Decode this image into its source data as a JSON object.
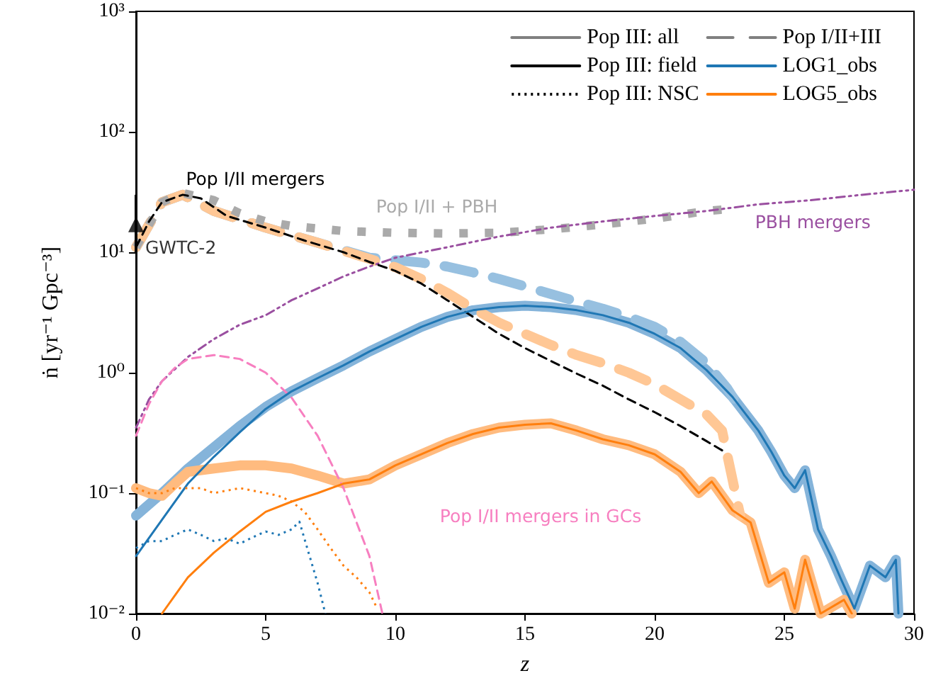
{
  "chart_data": {
    "type": "line",
    "xlabel": "z",
    "ylabel": "ṅ [yr⁻¹ Gpc⁻³]",
    "log": "y",
    "xlim": [
      0,
      30
    ],
    "xticks": [
      0,
      5,
      10,
      15,
      20,
      25,
      30
    ],
    "ylim": [
      0.01,
      1000
    ],
    "yticks": [
      {
        "value": 0.01,
        "label": "10⁻²"
      },
      {
        "value": 0.1,
        "label": "10⁻¹"
      },
      {
        "value": 1,
        "label": "10⁰"
      },
      {
        "value": 10,
        "label": "10¹"
      },
      {
        "value": 100,
        "label": "10²"
      },
      {
        "value": 1000,
        "label": "10³"
      }
    ],
    "grid": false,
    "legend": "top right",
    "marker": "none",
    "series": [
      {
        "name": "Pop III: all",
        "color": "#808080",
        "line_style": "solid"
      },
      {
        "name": "Pop III: field",
        "color": "#000000",
        "line_style": "solid"
      },
      {
        "name": "Pop III: NSC",
        "color": "#000000",
        "line_style": "dotted"
      },
      {
        "name": "Pop I/II+III",
        "color": "#808080",
        "line_style": "dashed"
      },
      {
        "color": "#85b4da",
        "line_style": "solid",
        "x": [
          0,
          1,
          2,
          3,
          4,
          5,
          6,
          7,
          8,
          9,
          10,
          11,
          12,
          13,
          14,
          15,
          16,
          17,
          18,
          19,
          20,
          21,
          22,
          23,
          24,
          24.5,
          25,
          25.4,
          25.8,
          26.3,
          26.8,
          27.2,
          27.7,
          28.3,
          28.9,
          29.3,
          29.4
        ],
        "values": [
          0.065,
          0.1,
          0.16,
          0.24,
          0.36,
          0.52,
          0.7,
          0.9,
          1.15,
          1.5,
          1.9,
          2.4,
          2.9,
          3.3,
          3.5,
          3.6,
          3.5,
          3.3,
          3.0,
          2.6,
          2.1,
          1.6,
          1.05,
          0.63,
          0.33,
          0.22,
          0.14,
          0.11,
          0.155,
          0.05,
          0.03,
          0.019,
          0.011,
          0.025,
          0.02,
          0.028,
          0.01
        ]
      },
      {
        "color": "#ffbb7f",
        "line_style": "solid",
        "x": [
          0,
          0.5,
          1,
          1.5,
          2,
          3,
          4,
          5,
          6,
          7,
          8,
          9,
          10,
          11,
          12,
          13,
          14,
          15,
          16,
          17,
          18,
          19,
          20,
          21,
          21.7,
          22.2,
          23,
          23.7,
          24.4,
          25,
          25.4,
          25.8,
          26.4,
          27.3,
          27.6
        ],
        "values": [
          0.11,
          0.1,
          0.095,
          0.12,
          0.15,
          0.16,
          0.17,
          0.17,
          0.16,
          0.14,
          0.12,
          0.13,
          0.17,
          0.21,
          0.26,
          0.31,
          0.35,
          0.37,
          0.38,
          0.33,
          0.28,
          0.25,
          0.21,
          0.15,
          0.1,
          0.125,
          0.072,
          0.057,
          0.018,
          0.022,
          0.011,
          0.028,
          0.01,
          0.013,
          0.01
        ]
      },
      {
        "color": "#97c0e0",
        "line_style": "dashed",
        "x": [
          0,
          1,
          1.8,
          3,
          5,
          7,
          9,
          10,
          11,
          12,
          13,
          14,
          15,
          16,
          17,
          18,
          19,
          20,
          21,
          22,
          22.8,
          23.3
        ],
        "values": [
          11,
          26,
          30,
          22,
          16,
          12,
          9,
          8.6,
          8.2,
          7.6,
          6.8,
          6.0,
          5.2,
          4.5,
          3.9,
          3.4,
          2.9,
          2.4,
          1.8,
          1.2,
          0.74,
          0.5
        ]
      },
      {
        "color": "#ffc795",
        "line_style": "dashed",
        "x": [
          0,
          1,
          1.8,
          3,
          5,
          7,
          9,
          10,
          11,
          12,
          13,
          14,
          15,
          16,
          17,
          18,
          19,
          20,
          21,
          22,
          22.6,
          23,
          23.3
        ],
        "values": [
          11,
          26,
          30,
          22,
          16,
          12,
          8.8,
          7.5,
          6,
          4.6,
          3.4,
          2.6,
          2.1,
          1.7,
          1.4,
          1.2,
          1.0,
          0.8,
          0.6,
          0.45,
          0.33,
          0.13,
          0.065
        ]
      },
      {
        "name": "Pop I/II + PBH",
        "color": "#aaaaaa",
        "line_style": "dotted",
        "x": [
          0,
          1,
          1.8,
          3,
          4,
          5,
          6,
          8,
          10,
          12,
          14,
          16,
          18,
          20,
          22,
          23
        ],
        "values": [
          11,
          26,
          31,
          27,
          21,
          18,
          16.5,
          15,
          14.5,
          14.3,
          14.5,
          15.5,
          17,
          19,
          22,
          23
        ]
      },
      {
        "name": "PBH mergers",
        "color": "#9a4fa0",
        "line_style": "dashdot",
        "x": [
          0,
          0.5,
          1,
          2,
          3,
          4,
          5,
          6,
          7,
          8,
          9,
          10,
          12,
          14,
          16,
          18,
          20,
          22,
          24,
          26,
          28,
          30
        ],
        "values": [
          0.35,
          0.6,
          0.85,
          1.35,
          1.9,
          2.5,
          3.0,
          4,
          5,
          6.3,
          7.6,
          9,
          11,
          13.5,
          16,
          18,
          20,
          22,
          25,
          27,
          30,
          33
        ]
      },
      {
        "name": "Pop I/II mergers in GCs",
        "color": "#f77fc0",
        "line_style": "dashed",
        "x": [
          0,
          0.5,
          1,
          1.5,
          2,
          3,
          4,
          5,
          6,
          7,
          8,
          9,
          9.5
        ],
        "values": [
          0.3,
          0.55,
          0.85,
          1.1,
          1.3,
          1.4,
          1.3,
          1.0,
          0.62,
          0.3,
          0.11,
          0.03,
          0.01
        ]
      },
      {
        "name": "Pop I/II mergers",
        "color": "#000000",
        "line_style": "dashed",
        "x": [
          0,
          0.5,
          1,
          1.8,
          2.5,
          3.5,
          5,
          6.5,
          8,
          9,
          10,
          11,
          12,
          13,
          14,
          15,
          16,
          17,
          18,
          19,
          20,
          21,
          22,
          22.7
        ],
        "values": [
          11,
          18,
          26,
          30,
          28,
          20,
          16,
          12.5,
          10,
          8.3,
          7,
          5.5,
          4,
          2.9,
          2.1,
          1.6,
          1.25,
          0.98,
          0.78,
          0.6,
          0.47,
          0.36,
          0.27,
          0.22
        ]
      },
      {
        "name": "LOG1_obs",
        "color": "#1f77b4",
        "line_style": "solid",
        "x": [
          0,
          1,
          2,
          3,
          4,
          5,
          6,
          7,
          8,
          9,
          10,
          11,
          12,
          13,
          14,
          15,
          16,
          17,
          18,
          19,
          20,
          21,
          22,
          23,
          24,
          24.5,
          25,
          25.4,
          25.8,
          26.3,
          26.8,
          27.2,
          27.7,
          28.3,
          28.9,
          29.3,
          29.4
        ],
        "values": [
          0.03,
          0.06,
          0.12,
          0.2,
          0.32,
          0.5,
          0.7,
          0.9,
          1.15,
          1.5,
          1.9,
          2.4,
          2.9,
          3.3,
          3.5,
          3.6,
          3.5,
          3.3,
          3.0,
          2.6,
          2.1,
          1.6,
          1.05,
          0.63,
          0.33,
          0.22,
          0.14,
          0.11,
          0.155,
          0.05,
          0.03,
          0.019,
          0.011,
          0.025,
          0.02,
          0.028,
          0.01
        ]
      },
      {
        "name": "LOG5_obs",
        "color": "#ff7f0e",
        "line_style": "solid",
        "x": [
          1,
          2,
          3,
          4,
          5,
          6,
          7,
          8,
          9,
          10,
          11,
          12,
          13,
          14,
          15,
          16,
          17,
          18,
          19,
          20,
          21,
          21.7,
          22.2,
          23,
          23.7,
          24.4,
          25,
          25.4,
          25.8,
          26.4,
          27.3,
          27.6
        ],
        "values": [
          0.01,
          0.02,
          0.032,
          0.048,
          0.07,
          0.085,
          0.1,
          0.12,
          0.13,
          0.17,
          0.21,
          0.26,
          0.31,
          0.35,
          0.37,
          0.38,
          0.33,
          0.28,
          0.25,
          0.21,
          0.15,
          0.1,
          0.125,
          0.072,
          0.057,
          0.018,
          0.022,
          0.011,
          0.028,
          0.01,
          0.013,
          0.01
        ]
      },
      {
        "color": "#1f77b4",
        "line_style": "dotted",
        "x": [
          0,
          0.5,
          1,
          1.5,
          2,
          2.5,
          3,
          3.5,
          4,
          4.5,
          5,
          5.5,
          6,
          6.3,
          6.6,
          7,
          7.3
        ],
        "values": [
          0.035,
          0.04,
          0.04,
          0.045,
          0.05,
          0.045,
          0.04,
          0.042,
          0.038,
          0.043,
          0.048,
          0.045,
          0.05,
          0.058,
          0.035,
          0.018,
          0.01
        ]
      },
      {
        "color": "#ff7f0e",
        "line_style": "dotted",
        "x": [
          0,
          0.5,
          1,
          1.5,
          2,
          2.5,
          3,
          3.5,
          4,
          4.5,
          5,
          5.5,
          6,
          6.5,
          7,
          7.5,
          8,
          8.5,
          9,
          9.3
        ],
        "values": [
          0.11,
          0.1,
          0.1,
          0.11,
          0.11,
          0.11,
          0.1,
          0.105,
          0.11,
          0.105,
          0.1,
          0.095,
          0.085,
          0.07,
          0.05,
          0.035,
          0.025,
          0.02,
          0.015,
          0.011
        ]
      },
      {
        "name": "GWTC-2",
        "type": "scatter",
        "marker": "triangle",
        "color": "#000000",
        "x": [
          0
        ],
        "values": [
          17
        ],
        "errors": [
          [
            10,
            30
          ]
        ]
      }
    ]
  }
}
